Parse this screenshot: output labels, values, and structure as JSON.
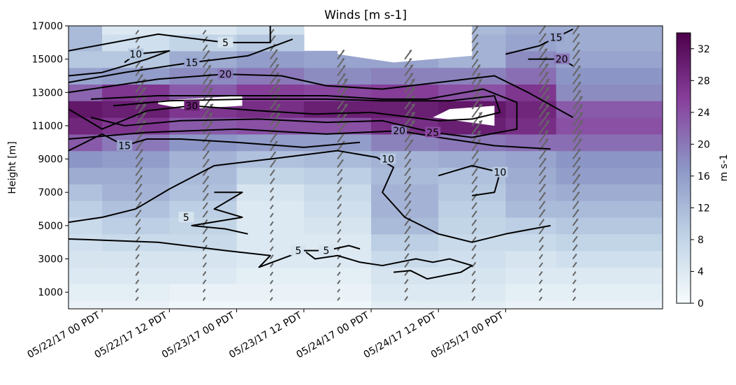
{
  "chart_data": {
    "type": "heatmap",
    "title": "Winds [m s-1]",
    "xlabel": "",
    "ylabel": "Height [m]",
    "colorbar_label": "m s-1",
    "colormap": [
      "#f7fcfd",
      "#bfd3e6",
      "#8c96c6",
      "#88419d",
      "#4d004b"
    ],
    "barb_color": "#666666",
    "contour_color": "#000000",
    "xlim": [
      -6,
      100
    ],
    "ylim": [
      0,
      17000
    ],
    "vlim": [
      0,
      34
    ],
    "x_ticks": [
      {
        "x": 0,
        "label": "05/22/17 00 PDT"
      },
      {
        "x": 12,
        "label": "05/22/17 12 PDT"
      },
      {
        "x": 24,
        "label": "05/23/17 00 PDT"
      },
      {
        "x": 36,
        "label": "05/23/17 12 PDT"
      },
      {
        "x": 48,
        "label": "05/24/17 00 PDT"
      },
      {
        "x": 60,
        "label": "05/24/17 12 PDT"
      },
      {
        "x": 72,
        "label": "05/25/17 00 PDT"
      }
    ],
    "y_ticks": [
      1000,
      3000,
      5000,
      7000,
      9000,
      11000,
      13000,
      15000,
      17000
    ],
    "colorbar_ticks": [
      0,
      4,
      8,
      12,
      16,
      20,
      24,
      28,
      32
    ],
    "sounding_times": [
      -6,
      6,
      18,
      30,
      42,
      54,
      66,
      78,
      84
    ],
    "heights": [
      0,
      1000,
      2000,
      3000,
      4000,
      5000,
      6000,
      7000,
      8000,
      9000,
      10000,
      11000,
      12000,
      13000,
      14000,
      15000,
      16000,
      17000
    ],
    "speed": [
      [
        2,
        3,
        4,
        5,
        6,
        7,
        9,
        11,
        14,
        17,
        23,
        29,
        31,
        22,
        15,
        10,
        12,
        12
      ],
      [
        2,
        3,
        4,
        5,
        7,
        9,
        11,
        13,
        14,
        16,
        20,
        27,
        30,
        27,
        16,
        10,
        6,
        4
      ],
      [
        1,
        2,
        4,
        5,
        7,
        8,
        9,
        11,
        12,
        13,
        17,
        23,
        27,
        23,
        18,
        14,
        8,
        4
      ],
      [
        1,
        2,
        3,
        4,
        4,
        4,
        4,
        5,
        8,
        11,
        16,
        24,
        28,
        26,
        20,
        16,
        10,
        6
      ],
      [
        1,
        2,
        3,
        4,
        4,
        5,
        6,
        7,
        9,
        12,
        16,
        24,
        30,
        25,
        18,
        15,
        null,
        null
      ],
      [
        3,
        4,
        5,
        7,
        9,
        12,
        13,
        13,
        12,
        13,
        19,
        28,
        30,
        26,
        19,
        15,
        null,
        null
      ],
      [
        3,
        4,
        5,
        6,
        7,
        8,
        9,
        10,
        11,
        14,
        20,
        30,
        31,
        24,
        19,
        13,
        13,
        12
      ],
      [
        2,
        3,
        4,
        5,
        7,
        9,
        12,
        13,
        14,
        15,
        21,
        28,
        29,
        27,
        21,
        18,
        15,
        14
      ],
      [
        2,
        3,
        4,
        6,
        8,
        10,
        12,
        14,
        16,
        17,
        21,
        24,
        23,
        18,
        17,
        15,
        14,
        14
      ]
    ],
    "blank_regions": [
      [
        [
          10,
          12500
        ],
        [
          25,
          12800
        ],
        [
          25,
          12200
        ],
        [
          15,
          12000
        ],
        [
          10,
          12300
        ]
      ],
      [
        [
          59,
          11500
        ],
        [
          70,
          11000
        ],
        [
          70,
          12200
        ],
        [
          62,
          12000
        ]
      ],
      [
        [
          42,
          15300
        ],
        [
          52,
          14800
        ],
        [
          66,
          15200
        ],
        [
          66,
          17000
        ],
        [
          42,
          17000
        ]
      ]
    ],
    "contours": [
      {
        "level": "5",
        "label_at": [
          22,
          16000
        ],
        "points": [
          [
            -6,
            15500
          ],
          [
            10,
            16500
          ],
          [
            22,
            16000
          ],
          [
            30,
            16000
          ],
          [
            30,
            17000
          ]
        ]
      },
      {
        "level": "5",
        "label_at": [
          35,
          3500
        ],
        "points": [
          [
            -6,
            4200
          ],
          [
            10,
            4000
          ],
          [
            22,
            3500
          ],
          [
            30,
            3200
          ],
          [
            28,
            2500
          ],
          [
            36,
            3500
          ],
          [
            38,
            3000
          ],
          [
            42,
            3200
          ],
          [
            46,
            2800
          ],
          [
            50,
            2600
          ],
          [
            56,
            3000
          ],
          [
            59,
            2800
          ],
          [
            62,
            3000
          ],
          [
            66,
            2600
          ],
          [
            64,
            2200
          ],
          [
            58,
            1800
          ],
          [
            55,
            2300
          ],
          [
            52,
            2200
          ]
        ]
      },
      {
        "level": "5",
        "label_at": [
          40,
          3500
        ],
        "points": [
          [
            36,
            3500
          ],
          [
            40,
            3500
          ],
          [
            44,
            3800
          ],
          [
            46,
            3600
          ]
        ]
      },
      {
        "level": "5",
        "label_at": [
          15,
          5500
        ],
        "points": [
          [
            20,
            7000
          ],
          [
            25,
            7000
          ],
          [
            20,
            6000
          ],
          [
            25,
            5500
          ],
          [
            16,
            5000
          ],
          [
            22,
            4800
          ],
          [
            26,
            4500
          ]
        ]
      },
      {
        "level": "10",
        "label_at": [
          6,
          15300
        ],
        "points": [
          [
            -6,
            14000
          ],
          [
            0,
            14200
          ],
          [
            8,
            15000
          ],
          [
            12,
            15500
          ],
          [
            6,
            15300
          ],
          [
            4,
            14800
          ]
        ]
      },
      {
        "level": "10",
        "label_at": [
          51,
          9000
        ],
        "points": [
          [
            -6,
            5200
          ],
          [
            0,
            5500
          ],
          [
            6,
            6000
          ],
          [
            12,
            7200
          ],
          [
            20,
            8600
          ],
          [
            30,
            9000
          ],
          [
            42,
            9500
          ],
          [
            49,
            9100
          ],
          [
            52,
            8500
          ],
          [
            50,
            7000
          ],
          [
            54,
            5500
          ],
          [
            60,
            4500
          ],
          [
            66,
            4000
          ],
          [
            72,
            4500
          ],
          [
            80,
            5000
          ]
        ]
      },
      {
        "level": "10",
        "label_at": [
          71,
          8200
        ],
        "points": [
          [
            60,
            8000
          ],
          [
            66,
            8600
          ],
          [
            71,
            8200
          ],
          [
            70,
            7000
          ],
          [
            66,
            6800
          ]
        ]
      },
      {
        "level": "15",
        "label_at": [
          16,
          14800
        ],
        "points": [
          [
            -6,
            13600
          ],
          [
            4,
            14200
          ],
          [
            16,
            14800
          ],
          [
            26,
            15200
          ],
          [
            34,
            16200
          ]
        ]
      },
      {
        "level": "15",
        "label_at": [
          4,
          9800
        ],
        "points": [
          [
            -6,
            9500
          ],
          [
            0,
            10500
          ],
          [
            4,
            9800
          ],
          [
            8,
            10200
          ],
          [
            14,
            10200
          ],
          [
            24,
            10000
          ],
          [
            36,
            9700
          ],
          [
            46,
            10000
          ]
        ]
      },
      {
        "level": "15",
        "label_at": [
          81,
          16300
        ],
        "points": [
          [
            72,
            15300
          ],
          [
            78,
            15800
          ],
          [
            84,
            16800
          ]
        ]
      },
      {
        "level": "20",
        "label_at": [
          22,
          14100
        ],
        "points": [
          [
            -6,
            13000
          ],
          [
            10,
            13800
          ],
          [
            22,
            14100
          ],
          [
            32,
            14000
          ],
          [
            40,
            13400
          ],
          [
            50,
            13200
          ],
          [
            60,
            13600
          ],
          [
            70,
            14000
          ],
          [
            76,
            13000
          ],
          [
            84,
            11500
          ]
        ]
      },
      {
        "level": "20",
        "label_at": [
          53,
          10700
        ],
        "points": [
          [
            -6,
            10200
          ],
          [
            8,
            10600
          ],
          [
            24,
            10800
          ],
          [
            40,
            10500
          ],
          [
            53,
            10700
          ],
          [
            60,
            10300
          ],
          [
            70,
            9800
          ],
          [
            80,
            9600
          ]
        ]
      },
      {
        "level": "20",
        "label_at": [
          82,
          15000
        ],
        "points": [
          [
            76,
            15000
          ],
          [
            82,
            15000
          ],
          [
            84,
            14600
          ]
        ]
      },
      {
        "level": "25",
        "label_at": [
          59,
          10600
        ],
        "points": [
          [
            -2,
            11500
          ],
          [
            4,
            11000
          ],
          [
            14,
            11300
          ],
          [
            28,
            11400
          ],
          [
            40,
            11200
          ],
          [
            50,
            11300
          ],
          [
            59,
            10600
          ],
          [
            66,
            10300
          ],
          [
            74,
            10800
          ],
          [
            74,
            12400
          ],
          [
            68,
            13200
          ],
          [
            58,
            12600
          ],
          [
            50,
            12600
          ],
          [
            40,
            12800
          ],
          [
            26,
            12800
          ],
          [
            10,
            12800
          ],
          [
            -2,
            12600
          ]
        ]
      },
      {
        "level": "30",
        "label_at": [
          16,
          12200
        ],
        "points": [
          [
            -6,
            12000
          ],
          [
            0,
            10800
          ],
          [
            8,
            11900
          ],
          [
            16,
            12200
          ],
          [
            28,
            11900
          ],
          [
            38,
            11700
          ],
          [
            48,
            11800
          ],
          [
            60,
            11300
          ],
          [
            66,
            11400
          ],
          [
            71,
            11800
          ],
          [
            70,
            12800
          ],
          [
            62,
            12500
          ],
          [
            50,
            12500
          ],
          [
            40,
            12600
          ],
          [
            26,
            12600
          ],
          [
            12,
            12500
          ],
          [
            2,
            12200
          ]
        ]
      }
    ]
  }
}
